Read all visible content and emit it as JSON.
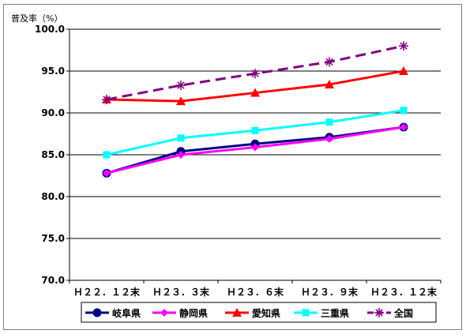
{
  "chart_data": {
    "type": "line",
    "title": "",
    "ylabel": "普及率（%）",
    "xlabel": "",
    "categories": [
      "Ｈ２２．１２末",
      "Ｈ２３．３末",
      "Ｈ２３．６末",
      "Ｈ２３．９末",
      "Ｈ２３．１２末"
    ],
    "ylim": [
      70.0,
      100.0
    ],
    "yticks": [
      "70.0",
      "75.0",
      "80.0",
      "85.0",
      "90.0",
      "95.0",
      "100.0"
    ],
    "grid": true,
    "legend_position": "bottom",
    "series": [
      {
        "name": "岐阜県",
        "values": [
          82.8,
          85.4,
          86.3,
          87.1,
          88.3
        ],
        "color": "#000080",
        "marker": "circle",
        "dash": false
      },
      {
        "name": "静岡県",
        "values": [
          82.8,
          85.0,
          85.9,
          86.9,
          88.3
        ],
        "color": "#ff00ff",
        "marker": "diamond",
        "dash": false
      },
      {
        "name": "愛知県",
        "values": [
          91.6,
          91.4,
          92.4,
          93.4,
          95.0
        ],
        "color": "#ff0000",
        "marker": "triangle",
        "dash": false
      },
      {
        "name": "三重県",
        "values": [
          85.0,
          87.0,
          87.9,
          88.9,
          90.3
        ],
        "color": "#00ffff",
        "marker": "square",
        "dash": false
      },
      {
        "name": "全国",
        "values": [
          91.6,
          93.3,
          94.7,
          96.1,
          98.0
        ],
        "color": "#800080",
        "marker": "asterisk",
        "dash": true
      }
    ]
  }
}
